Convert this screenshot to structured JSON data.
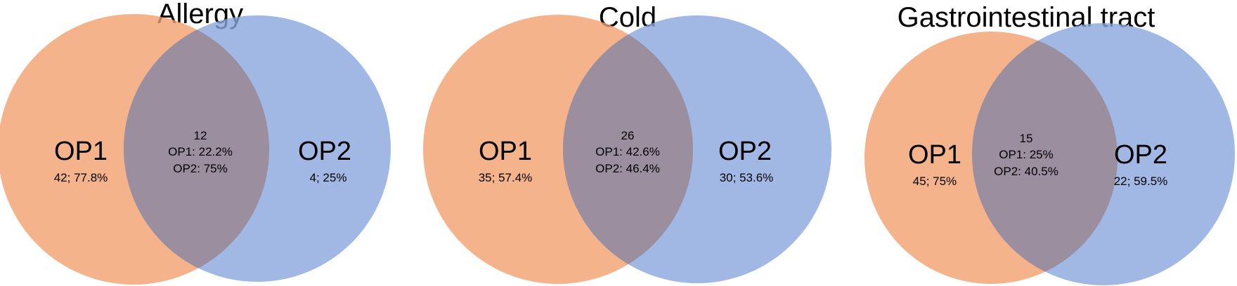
{
  "colors": {
    "op1_fill": "#f2a06f",
    "op2_fill": "#8aa6df",
    "overlap_fill": "#9a8e9f",
    "background": "#ffffff"
  },
  "diagrams": [
    {
      "title": "Allergy",
      "left_label": "OP1",
      "left_stats": "42; 77.8%",
      "right_label": "OP2",
      "right_stats": "4; 25%",
      "overlap_count": "12",
      "overlap_op1": "OP1: 22.2%",
      "overlap_op2": "OP2: 75%"
    },
    {
      "title": "Cold",
      "left_label": "OP1",
      "left_stats": "35; 57.4%",
      "right_label": "OP2",
      "right_stats": "30; 53.6%",
      "overlap_count": "26",
      "overlap_op1": "OP1: 42.6%",
      "overlap_op2": "OP2: 46.4%"
    },
    {
      "title": "Gastrointestinal tract",
      "left_label": "OP1",
      "left_stats": "45; 75%",
      "right_label": "OP2",
      "right_stats": "22; 59.5%",
      "overlap_count": "15",
      "overlap_op1": "OP1: 25%",
      "overlap_op2": "OP2: 40.5%"
    }
  ]
}
